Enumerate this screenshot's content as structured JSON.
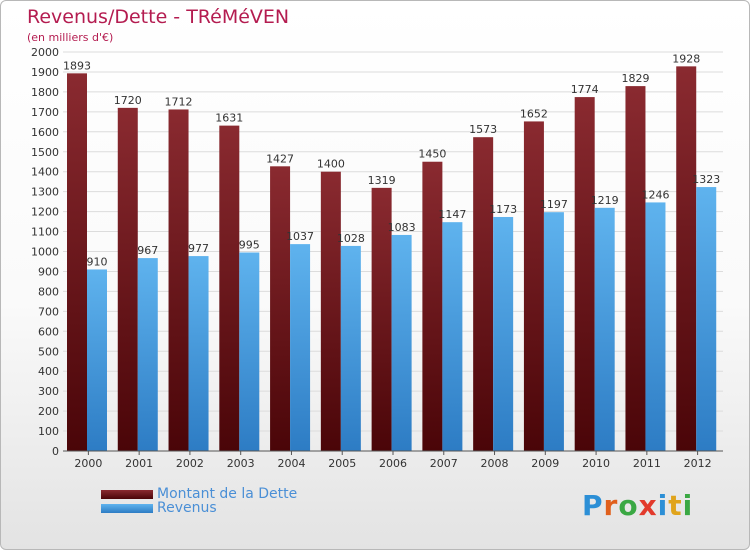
{
  "header": {
    "title": "Revenus/Dette - TRéMéVEN",
    "subtitle": "(en milliers d'€)"
  },
  "colors": {
    "debt": "#6e1318",
    "revenue": "#4b9fe0",
    "title": "#b41c50"
  },
  "logo": {
    "letters": [
      "P",
      "r",
      "o",
      "x",
      "i",
      "t",
      "i"
    ]
  },
  "chart_data": {
    "type": "bar",
    "title": "Revenus/Dette - TRéMéVEN",
    "subtitle": "(en milliers d'€)",
    "categories": [
      "2000",
      "2001",
      "2002",
      "2003",
      "2004",
      "2005",
      "2006",
      "2007",
      "2008",
      "2009",
      "2010",
      "2011",
      "2012"
    ],
    "series": [
      {
        "name": "Montant de la Dette",
        "values": [
          1893,
          1720,
          1712,
          1631,
          1427,
          1400,
          1319,
          1450,
          1573,
          1652,
          1774,
          1829,
          1928
        ]
      },
      {
        "name": "Revenus",
        "values": [
          910,
          967,
          977,
          995,
          1037,
          1028,
          1083,
          1147,
          1173,
          1197,
          1219,
          1246,
          1323
        ]
      }
    ],
    "ylim": [
      0,
      2000
    ],
    "yticks": [
      0,
      100,
      200,
      300,
      400,
      500,
      600,
      700,
      800,
      900,
      1000,
      1100,
      1200,
      1300,
      1400,
      1500,
      1600,
      1700,
      1800,
      1900,
      2000
    ],
    "grid": true,
    "legend_position": "bottom-left"
  }
}
